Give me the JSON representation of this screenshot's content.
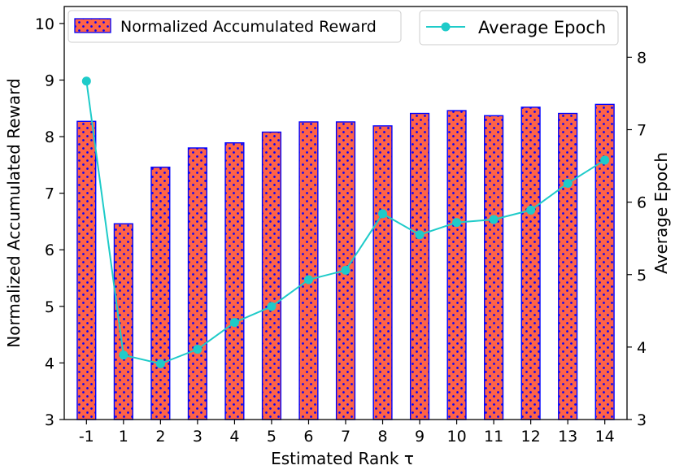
{
  "chart_data": {
    "type": "bar",
    "xlabel": "Estimated Rank τ",
    "ylabel": "Normalized Accumulated Reward",
    "y2label": "Average Epoch",
    "categories": [
      "-1",
      "1",
      "2",
      "3",
      "4",
      "5",
      "6",
      "7",
      "8",
      "9",
      "10",
      "11",
      "12",
      "13",
      "14"
    ],
    "ylim": [
      3,
      10.3
    ],
    "y2lim": [
      3,
      8.7
    ],
    "yticks": [
      "3",
      "4",
      "5",
      "6",
      "7",
      "8",
      "9",
      "10"
    ],
    "y2ticks": [
      "3",
      "4",
      "5",
      "6",
      "7",
      "8"
    ],
    "grid": false,
    "series": [
      {
        "name": "Normalized Accumulated Reward",
        "kind": "bar",
        "axis": "left",
        "values": [
          8.27,
          6.46,
          7.46,
          7.8,
          7.89,
          8.08,
          8.26,
          8.26,
          8.19,
          8.41,
          8.46,
          8.37,
          8.52,
          8.41,
          8.57
        ],
        "face_color": "#ff6347",
        "edge_color": "#0000ff",
        "hatch": "dots"
      },
      {
        "name": "Average Epoch",
        "kind": "line",
        "axis": "right",
        "marker": "circle",
        "values": [
          7.67,
          3.89,
          3.77,
          3.97,
          4.34,
          4.56,
          4.93,
          5.06,
          5.84,
          5.55,
          5.72,
          5.76,
          5.89,
          6.26,
          6.58
        ],
        "color": "#1ecbc9"
      }
    ],
    "legends": [
      {
        "placement": "top-left",
        "entries": [
          "Normalized Accumulated Reward"
        ]
      },
      {
        "placement": "top-right",
        "entries": [
          "Average Epoch"
        ]
      }
    ]
  }
}
